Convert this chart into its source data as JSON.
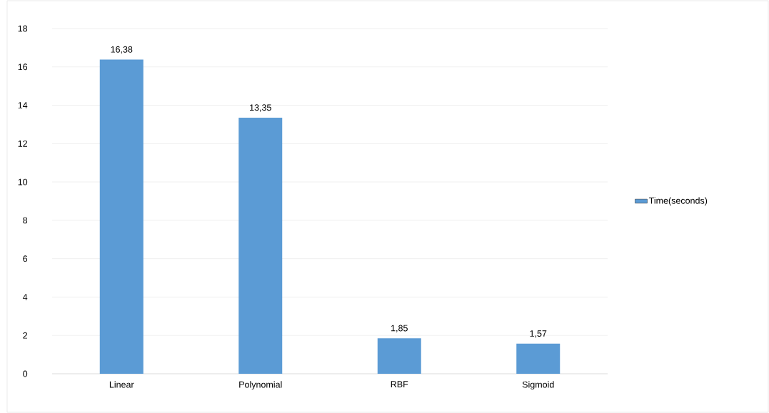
{
  "chart_data": {
    "type": "bar",
    "categories": [
      "Linear",
      "Polynomial",
      "RBF",
      "Sigmoid"
    ],
    "series": [
      {
        "name": "Time(seconds)",
        "color": "#5b9bd5",
        "values": [
          16.38,
          13.35,
          1.85,
          1.57
        ],
        "value_labels": [
          "16,38",
          "13,35",
          "1,85",
          "1,57"
        ]
      }
    ],
    "ylim": [
      0,
      18
    ],
    "yticks": [
      0,
      2,
      4,
      6,
      8,
      10,
      12,
      14,
      16,
      18
    ],
    "grid": "y",
    "legend": "right"
  }
}
